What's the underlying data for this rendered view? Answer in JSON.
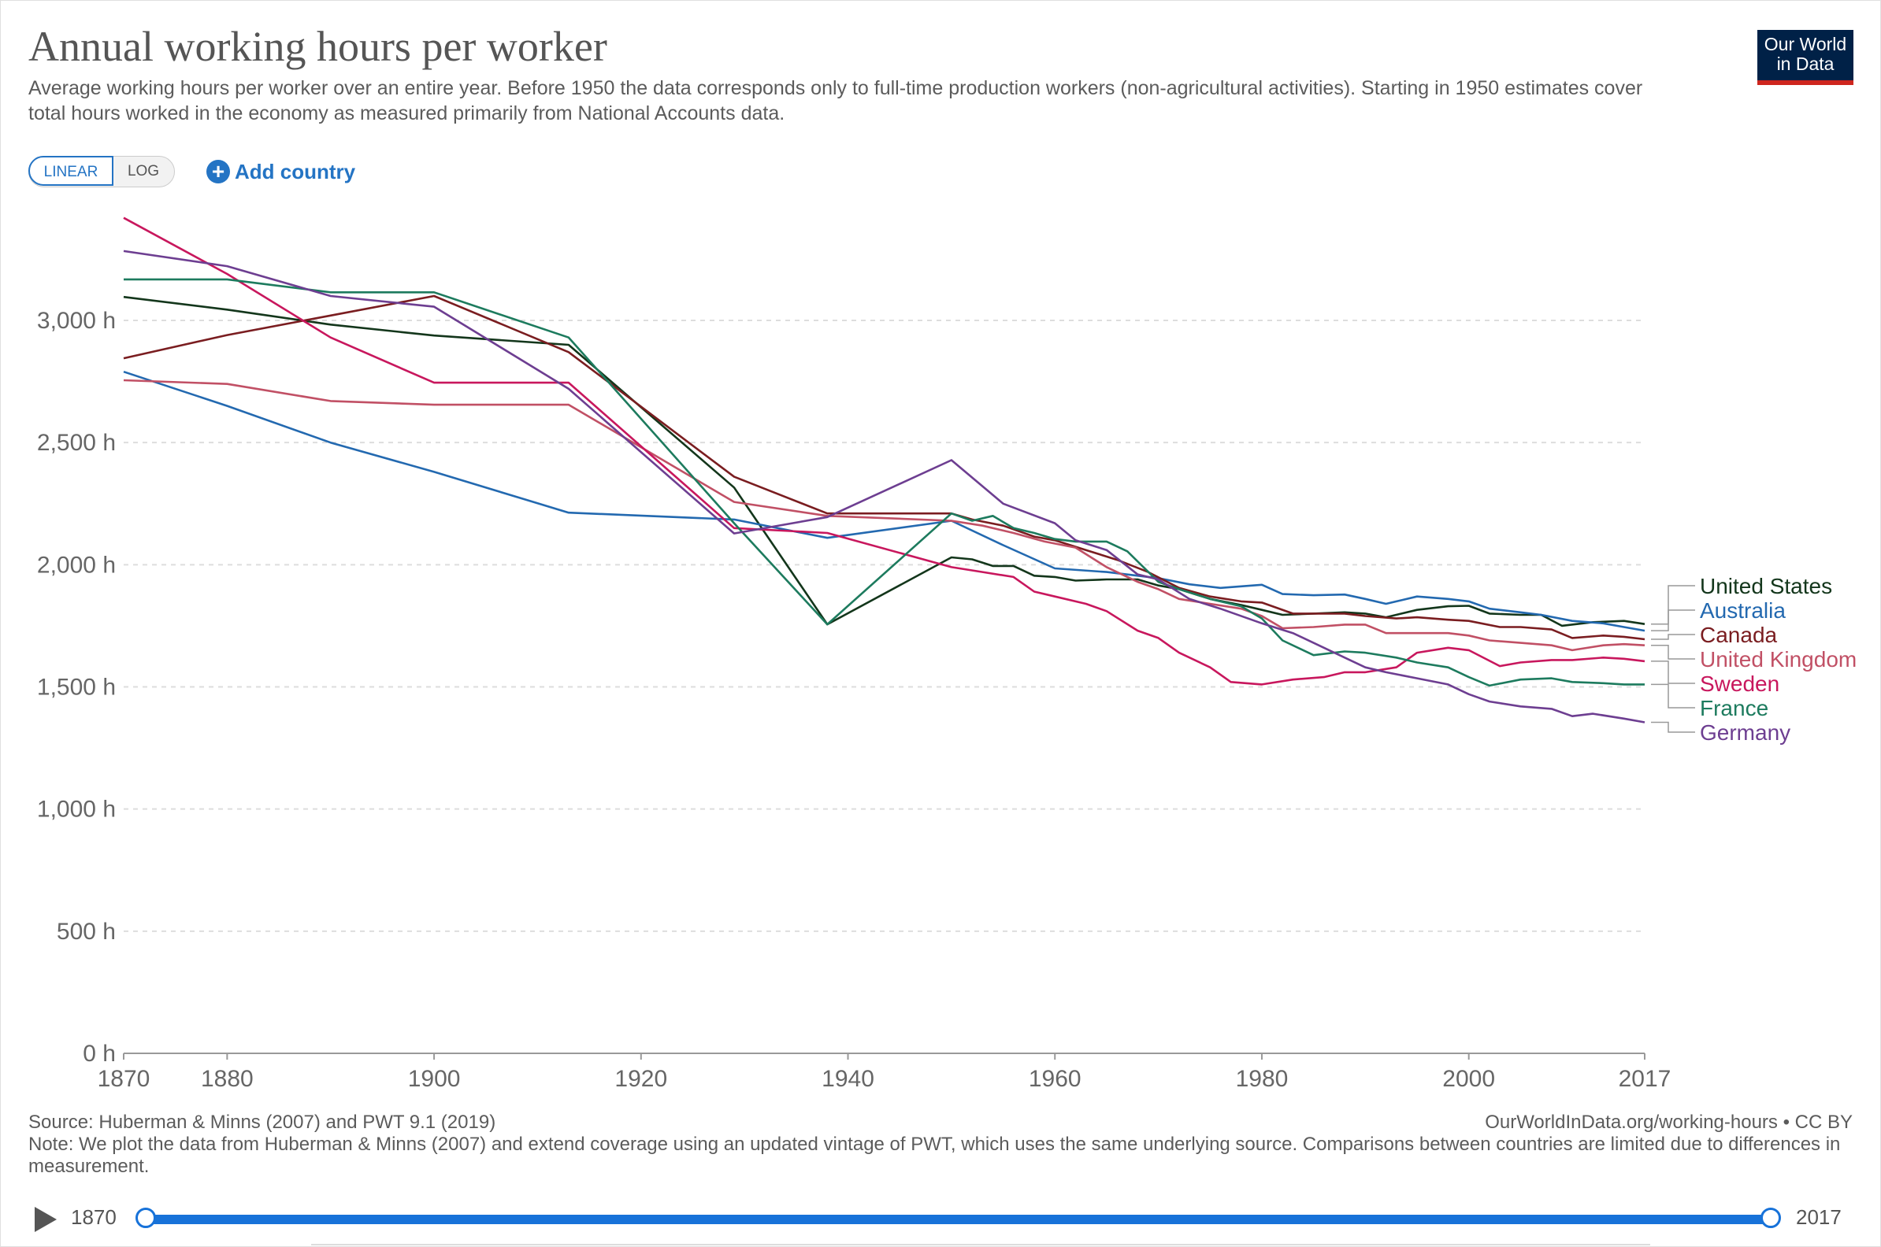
{
  "header": {
    "title": "Annual working hours per worker",
    "subtitle": "Average working hours per worker over an entire year. Before 1950 the data corresponds only to full-time production workers (non-agricultural activities). Starting in 1950 estimates cover total hours worked in the economy as measured primarily from National Accounts data.",
    "logo_line1": "Our World",
    "logo_line2": "in Data"
  },
  "controls": {
    "linear_label": "LINEAR",
    "log_label": "LOG",
    "add_country_label": "Add country",
    "add_icon": "+"
  },
  "footer": {
    "source": "Source: Huberman & Minns (2007) and PWT 9.1 (2019)",
    "url": "OurWorldInData.org/working-hours • CC BY",
    "note": "Note: We plot the data from Huberman & Minns (2007) and extend coverage using an updated vintage of PWT, which uses the same underlying source. Comparisons between countries are limited due to differences in measurement."
  },
  "timeline": {
    "start_label": "1870",
    "end_label": "2017"
  },
  "chart_data": {
    "type": "line",
    "title": "Annual working hours per worker",
    "xlabel": "",
    "ylabel": "",
    "xlim": [
      1870,
      2017
    ],
    "ylim": [
      0,
      3500
    ],
    "x_ticks": [
      1870,
      1880,
      1900,
      1920,
      1940,
      1960,
      1980,
      2000,
      2017
    ],
    "y_ticks": [
      0,
      500,
      1000,
      1500,
      2000,
      2500,
      3000
    ],
    "y_tick_labels": [
      "0 h",
      "500 h",
      "1,000 h",
      "1,500 h",
      "2,000 h",
      "2,500 h",
      "3,000 h"
    ],
    "grid": "horizontal dashed",
    "legend_placement": "right, line ends",
    "series": [
      {
        "name": "United States",
        "color": "#13361b",
        "points": [
          [
            1870,
            3096
          ],
          [
            1880,
            3044
          ],
          [
            1890,
            2983
          ],
          [
            1900,
            2938
          ],
          [
            1913,
            2900
          ],
          [
            1929,
            2316
          ],
          [
            1938,
            1756
          ],
          [
            1950,
            2030
          ],
          [
            1952,
            2022
          ],
          [
            1954,
            1995
          ],
          [
            1956,
            1995
          ],
          [
            1958,
            1955
          ],
          [
            1960,
            1950
          ],
          [
            1962,
            1935
          ],
          [
            1965,
            1940
          ],
          [
            1968,
            1940
          ],
          [
            1970,
            1915
          ],
          [
            1972,
            1900
          ],
          [
            1975,
            1860
          ],
          [
            1978,
            1835
          ],
          [
            1980,
            1815
          ],
          [
            1982,
            1795
          ],
          [
            1985,
            1800
          ],
          [
            1988,
            1805
          ],
          [
            1990,
            1800
          ],
          [
            1992,
            1785
          ],
          [
            1995,
            1815
          ],
          [
            1998,
            1830
          ],
          [
            2000,
            1832
          ],
          [
            2002,
            1800
          ],
          [
            2005,
            1795
          ],
          [
            2007,
            1795
          ],
          [
            2009,
            1750
          ],
          [
            2012,
            1765
          ],
          [
            2015,
            1770
          ],
          [
            2017,
            1757
          ]
        ]
      },
      {
        "name": "Australia",
        "color": "#2369b0",
        "points": [
          [
            1870,
            2790
          ],
          [
            1880,
            2650
          ],
          [
            1890,
            2500
          ],
          [
            1900,
            2380
          ],
          [
            1913,
            2213
          ],
          [
            1929,
            2185
          ],
          [
            1938,
            2110
          ],
          [
            1950,
            2180
          ],
          [
            1955,
            2080
          ],
          [
            1960,
            1985
          ],
          [
            1965,
            1970
          ],
          [
            1970,
            1945
          ],
          [
            1973,
            1920
          ],
          [
            1976,
            1905
          ],
          [
            1980,
            1918
          ],
          [
            1982,
            1880
          ],
          [
            1985,
            1875
          ],
          [
            1988,
            1878
          ],
          [
            1990,
            1860
          ],
          [
            1992,
            1840
          ],
          [
            1995,
            1870
          ],
          [
            1998,
            1860
          ],
          [
            2000,
            1850
          ],
          [
            2002,
            1820
          ],
          [
            2005,
            1805
          ],
          [
            2007,
            1795
          ],
          [
            2010,
            1770
          ],
          [
            2013,
            1760
          ],
          [
            2015,
            1745
          ],
          [
            2017,
            1730
          ]
        ]
      },
      {
        "name": "Canada",
        "color": "#7a1d20",
        "points": [
          [
            1870,
            2845
          ],
          [
            1880,
            2940
          ],
          [
            1890,
            3020
          ],
          [
            1900,
            3100
          ],
          [
            1913,
            2870
          ],
          [
            1929,
            2360
          ],
          [
            1938,
            2210
          ],
          [
            1950,
            2210
          ],
          [
            1952,
            2185
          ],
          [
            1955,
            2160
          ],
          [
            1958,
            2115
          ],
          [
            1960,
            2100
          ],
          [
            1963,
            2060
          ],
          [
            1966,
            2020
          ],
          [
            1969,
            1970
          ],
          [
            1972,
            1905
          ],
          [
            1975,
            1870
          ],
          [
            1978,
            1850
          ],
          [
            1980,
            1845
          ],
          [
            1983,
            1800
          ],
          [
            1985,
            1800
          ],
          [
            1988,
            1800
          ],
          [
            1990,
            1790
          ],
          [
            1993,
            1780
          ],
          [
            1995,
            1785
          ],
          [
            1998,
            1775
          ],
          [
            2000,
            1770
          ],
          [
            2003,
            1745
          ],
          [
            2005,
            1745
          ],
          [
            2008,
            1735
          ],
          [
            2010,
            1700
          ],
          [
            2013,
            1710
          ],
          [
            2015,
            1705
          ],
          [
            2017,
            1695
          ]
        ]
      },
      {
        "name": "United Kingdom",
        "color": "#c15065",
        "points": [
          [
            1870,
            2755
          ],
          [
            1880,
            2740
          ],
          [
            1890,
            2670
          ],
          [
            1900,
            2655
          ],
          [
            1913,
            2655
          ],
          [
            1929,
            2257
          ],
          [
            1938,
            2200
          ],
          [
            1950,
            2180
          ],
          [
            1953,
            2160
          ],
          [
            1956,
            2130
          ],
          [
            1959,
            2095
          ],
          [
            1962,
            2070
          ],
          [
            1965,
            1990
          ],
          [
            1968,
            1930
          ],
          [
            1970,
            1900
          ],
          [
            1972,
            1860
          ],
          [
            1975,
            1840
          ],
          [
            1978,
            1820
          ],
          [
            1980,
            1790
          ],
          [
            1982,
            1740
          ],
          [
            1985,
            1745
          ],
          [
            1988,
            1755
          ],
          [
            1990,
            1755
          ],
          [
            1992,
            1720
          ],
          [
            1995,
            1720
          ],
          [
            1998,
            1720
          ],
          [
            2000,
            1710
          ],
          [
            2002,
            1690
          ],
          [
            2005,
            1680
          ],
          [
            2008,
            1670
          ],
          [
            2010,
            1650
          ],
          [
            2013,
            1670
          ],
          [
            2015,
            1675
          ],
          [
            2017,
            1670
          ]
        ]
      },
      {
        "name": "Sweden",
        "color": "#c8175d",
        "points": [
          [
            1870,
            3420
          ],
          [
            1880,
            3190
          ],
          [
            1890,
            2930
          ],
          [
            1900,
            2745
          ],
          [
            1913,
            2745
          ],
          [
            1929,
            2150
          ],
          [
            1938,
            2130
          ],
          [
            1950,
            1990
          ],
          [
            1953,
            1970
          ],
          [
            1956,
            1950
          ],
          [
            1958,
            1890
          ],
          [
            1960,
            1870
          ],
          [
            1963,
            1840
          ],
          [
            1965,
            1810
          ],
          [
            1968,
            1730
          ],
          [
            1970,
            1700
          ],
          [
            1972,
            1640
          ],
          [
            1975,
            1580
          ],
          [
            1977,
            1520
          ],
          [
            1980,
            1510
          ],
          [
            1983,
            1530
          ],
          [
            1986,
            1540
          ],
          [
            1988,
            1560
          ],
          [
            1990,
            1560
          ],
          [
            1993,
            1580
          ],
          [
            1995,
            1640
          ],
          [
            1998,
            1660
          ],
          [
            2000,
            1650
          ],
          [
            2003,
            1585
          ],
          [
            2005,
            1600
          ],
          [
            2008,
            1610
          ],
          [
            2010,
            1610
          ],
          [
            2013,
            1620
          ],
          [
            2015,
            1615
          ],
          [
            2017,
            1605
          ]
        ]
      },
      {
        "name": "France",
        "color": "#1d7b5e",
        "points": [
          [
            1870,
            3168
          ],
          [
            1880,
            3168
          ],
          [
            1890,
            3115
          ],
          [
            1900,
            3115
          ],
          [
            1913,
            2930
          ],
          [
            1929,
            2170
          ],
          [
            1938,
            1756
          ],
          [
            1950,
            2210
          ],
          [
            1952,
            2180
          ],
          [
            1954,
            2200
          ],
          [
            1956,
            2150
          ],
          [
            1958,
            2130
          ],
          [
            1960,
            2105
          ],
          [
            1962,
            2095
          ],
          [
            1965,
            2095
          ],
          [
            1967,
            2055
          ],
          [
            1970,
            1930
          ],
          [
            1972,
            1900
          ],
          [
            1975,
            1860
          ],
          [
            1978,
            1830
          ],
          [
            1980,
            1780
          ],
          [
            1982,
            1690
          ],
          [
            1985,
            1630
          ],
          [
            1988,
            1645
          ],
          [
            1990,
            1640
          ],
          [
            1993,
            1620
          ],
          [
            1995,
            1600
          ],
          [
            1998,
            1580
          ],
          [
            2000,
            1540
          ],
          [
            2002,
            1505
          ],
          [
            2005,
            1530
          ],
          [
            2008,
            1535
          ],
          [
            2010,
            1520
          ],
          [
            2013,
            1515
          ],
          [
            2015,
            1510
          ],
          [
            2017,
            1510
          ]
        ]
      },
      {
        "name": "Germany",
        "color": "#6d3e91",
        "points": [
          [
            1870,
            3284
          ],
          [
            1880,
            3222
          ],
          [
            1890,
            3100
          ],
          [
            1900,
            3056
          ],
          [
            1913,
            2720
          ],
          [
            1929,
            2128
          ],
          [
            1938,
            2195
          ],
          [
            1950,
            2428
          ],
          [
            1955,
            2250
          ],
          [
            1960,
            2170
          ],
          [
            1962,
            2100
          ],
          [
            1965,
            2060
          ],
          [
            1968,
            1960
          ],
          [
            1970,
            1940
          ],
          [
            1973,
            1860
          ],
          [
            1976,
            1820
          ],
          [
            1980,
            1760
          ],
          [
            1983,
            1720
          ],
          [
            1985,
            1680
          ],
          [
            1988,
            1620
          ],
          [
            1990,
            1580
          ],
          [
            1992,
            1560
          ],
          [
            1995,
            1535
          ],
          [
            1998,
            1510
          ],
          [
            2000,
            1470
          ],
          [
            2002,
            1440
          ],
          [
            2005,
            1420
          ],
          [
            2008,
            1410
          ],
          [
            2010,
            1380
          ],
          [
            2012,
            1390
          ],
          [
            2015,
            1370
          ],
          [
            2017,
            1355
          ]
        ]
      }
    ]
  }
}
